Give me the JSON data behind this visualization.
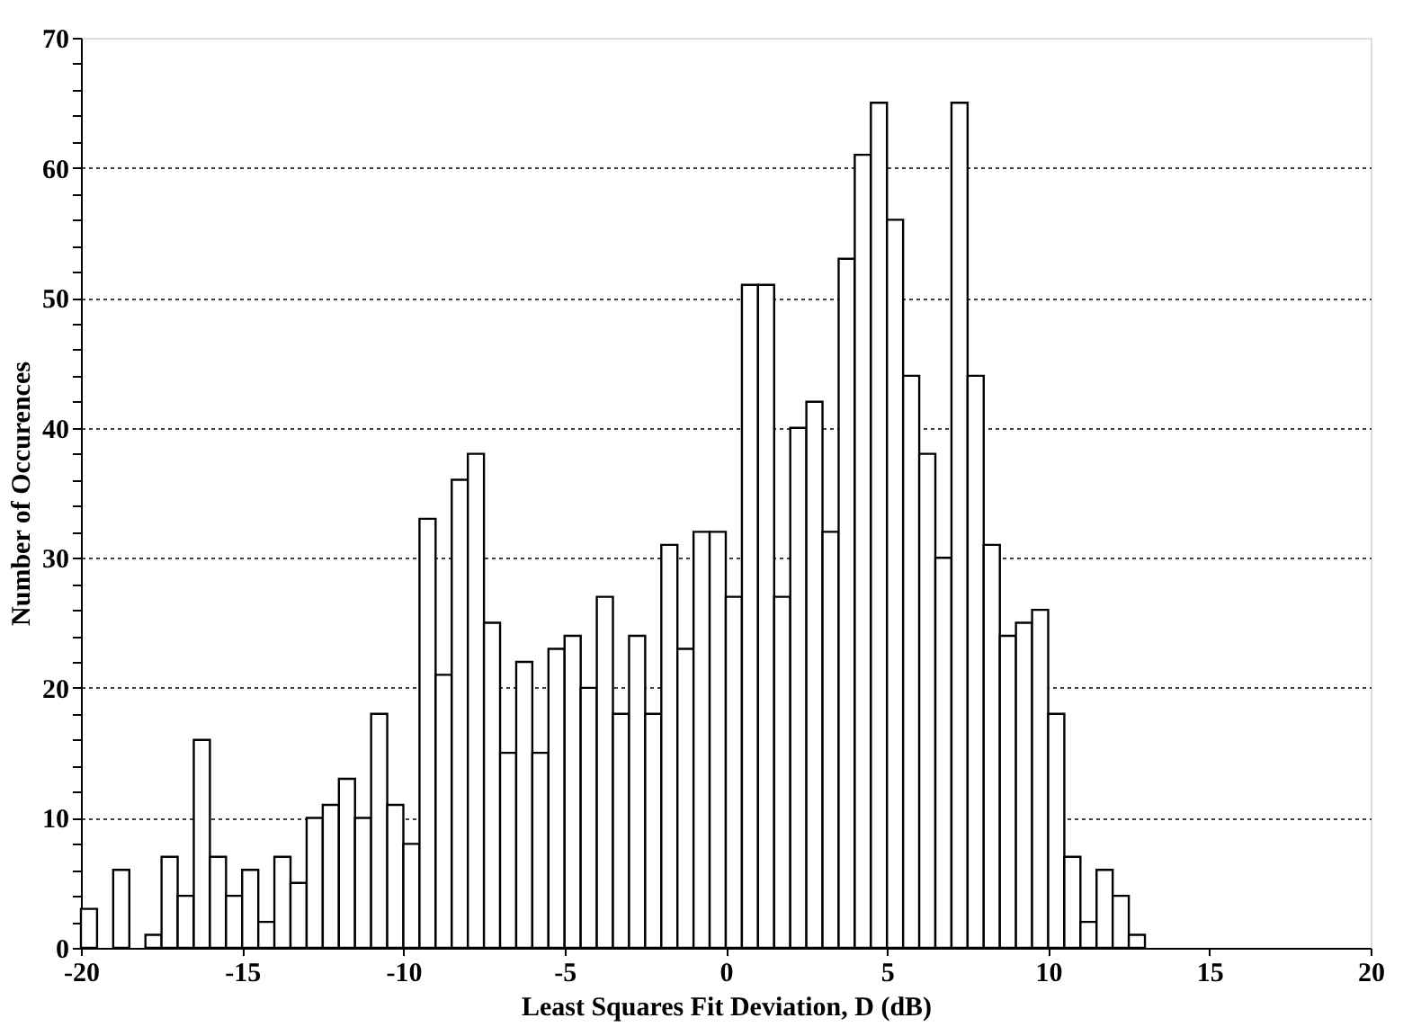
{
  "chart_data": {
    "type": "histogram",
    "xlabel": "Least Squares Fit Deviation, D (dB)",
    "ylabel": "Number of Occurences",
    "bins": [
      -20,
      -19.5,
      -19,
      -18.5,
      -18,
      -17.5,
      -17,
      -16.5,
      -16,
      -15.5,
      -15,
      -14.5,
      -14,
      -13.5,
      -13,
      -12.5,
      -12,
      -11.5,
      -11,
      -10.5,
      -10,
      -9.5,
      -9,
      -8.5,
      -8,
      -7.5,
      -7,
      -6.5,
      -6,
      -5.5,
      -5,
      -4.5,
      -4,
      -3.5,
      -3,
      -2.5,
      -2,
      -1.5,
      -1,
      -0.5,
      0,
      0.5,
      1,
      1.5,
      2,
      2.5,
      3,
      3.5,
      4,
      4.5,
      5,
      5.5,
      6,
      6.5,
      7,
      7.5,
      8,
      8.5,
      9,
      9.5,
      10,
      10.5,
      11,
      11.5,
      12,
      12.5,
      13
    ],
    "values": [
      3,
      0,
      6,
      0,
      1,
      7,
      4,
      16,
      7,
      4,
      6,
      2,
      7,
      5,
      10,
      11,
      13,
      10,
      18,
      11,
      8,
      33,
      21,
      36,
      38,
      25,
      15,
      22,
      15,
      23,
      24,
      20,
      27,
      18,
      24,
      18,
      31,
      23,
      32,
      32,
      27,
      51,
      51,
      27,
      40,
      42,
      32,
      53,
      61,
      65,
      56,
      44,
      38,
      30,
      65,
      44,
      31,
      24,
      25,
      26,
      18,
      7,
      2,
      6,
      4,
      1
    ],
    "color": "#ffffff",
    "xlim": [
      -20,
      20
    ],
    "xticks": [
      -20,
      -15,
      -10,
      -5,
      0,
      5,
      10,
      15,
      20
    ],
    "ylim": [
      0,
      70
    ],
    "yticks": [
      0,
      {
        "value": 2,
        "label": null
      },
      {
        "value": 4,
        "label": null
      },
      {
        "value": 6,
        "label": null
      },
      {
        "value": 8,
        "label": null
      },
      10,
      {
        "value": 12,
        "label": null
      },
      {
        "value": 14,
        "label": null
      },
      {
        "value": 16,
        "label": null
      },
      {
        "value": 18,
        "label": null
      },
      20,
      {
        "value": 22,
        "label": null
      },
      {
        "value": 24,
        "label": null
      },
      {
        "value": 26,
        "label": null
      },
      {
        "value": 28,
        "label": null
      },
      30,
      {
        "value": 32,
        "label": null
      },
      {
        "value": 34,
        "label": null
      },
      {
        "value": 36,
        "label": null
      },
      {
        "value": 38,
        "label": null
      },
      40,
      {
        "value": 42,
        "label": null
      },
      {
        "value": 44,
        "label": null
      },
      {
        "value": 46,
        "label": null
      },
      {
        "value": 48,
        "label": null
      },
      50,
      {
        "value": 52,
        "label": null
      },
      {
        "value": 54,
        "label": null
      },
      {
        "value": 56,
        "label": null
      },
      {
        "value": 58,
        "label": null
      },
      60,
      {
        "value": 62,
        "label": null
      },
      {
        "value": 64,
        "label": null
      },
      {
        "value": 66,
        "label": null
      },
      {
        "value": 68,
        "label": null
      },
      70
    ],
    "grid": "y"
  }
}
